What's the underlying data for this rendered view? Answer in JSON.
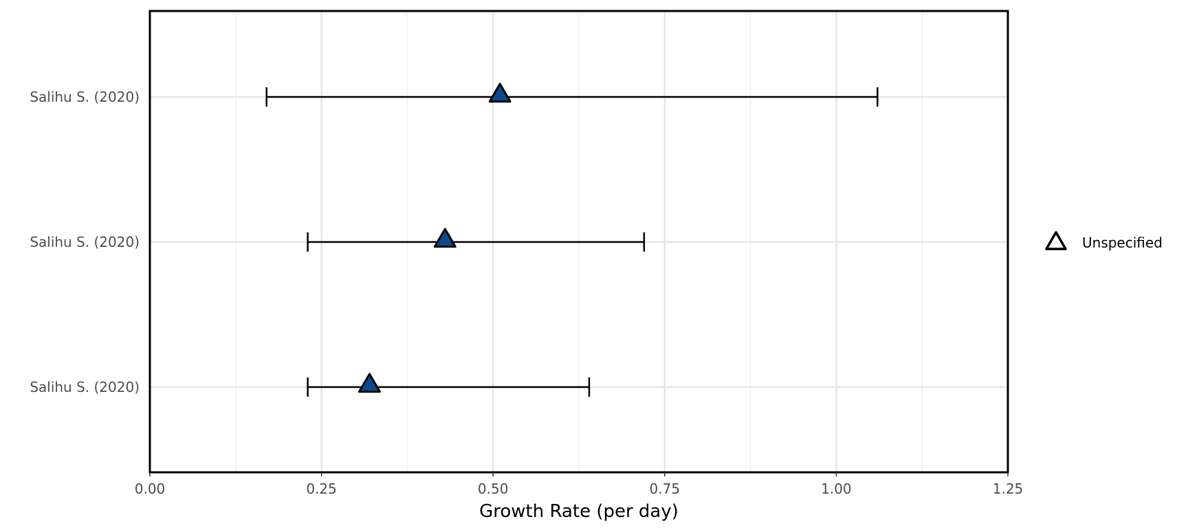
{
  "chart_data": {
    "type": "scatter",
    "subtype": "forest-plot-with-error-bars",
    "xlabel": "Growth Rate (per day)",
    "ylabel": "",
    "xlim": [
      0,
      1.25
    ],
    "x_ticks": [
      0,
      0.25,
      0.5,
      0.75,
      1.0,
      1.25
    ],
    "x_tick_labels": [
      "0.00",
      "0.25",
      "0.50",
      "0.75",
      "1.00",
      "1.25"
    ],
    "grid": true,
    "legend_position": "right",
    "categories": [
      "Salihu S. (2020)",
      "Salihu S. (2020)",
      "Salihu S. (2020)"
    ],
    "series": [
      {
        "name": "Unspecified",
        "marker": "triangle",
        "color": "#0d4a8c",
        "values": [
          0.51,
          0.43,
          0.32
        ],
        "lower": [
          0.17,
          0.23,
          0.23
        ],
        "upper": [
          1.06,
          0.72,
          0.64
        ]
      }
    ]
  }
}
